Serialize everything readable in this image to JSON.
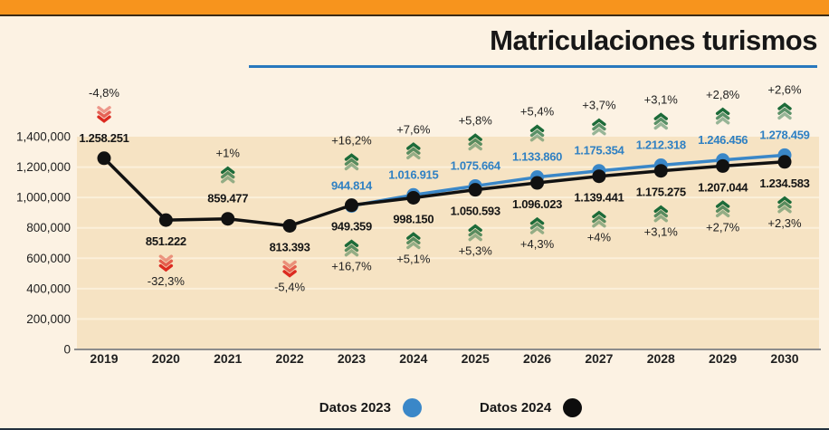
{
  "header": {
    "top_bar_color": "#F7941D",
    "title": "Matriculaciones turismos",
    "underline_color": "#2878BE"
  },
  "legend": {
    "items": [
      {
        "label": "Datos 2023",
        "color": "#3A87C8"
      },
      {
        "label": "Datos 2024",
        "color": "#0D0D0D"
      }
    ]
  },
  "chart_data": {
    "type": "line",
    "title": "Matriculaciones turismos",
    "x": [
      2019,
      2020,
      2021,
      2022,
      2023,
      2024,
      2025,
      2026,
      2027,
      2028,
      2029,
      2030
    ],
    "ylim": [
      0,
      1400000
    ],
    "ytick_step": 200000,
    "ytick_labels": [
      "0",
      "200,000",
      "400,000",
      "600,000",
      "800,000",
      "1,000,000",
      "1,200,000",
      "1,400,000"
    ],
    "grid": true,
    "legend_position": "bottom",
    "series": [
      {
        "name": "Datos 2023",
        "color": "#3A87C8",
        "start_year": 2023,
        "values": [
          944814,
          1016915,
          1075664,
          1133860,
          1175354,
          1212318,
          1246456,
          1278459
        ]
      },
      {
        "name": "Datos 2024",
        "color": "#111111",
        "start_year": 2019,
        "values": [
          1258251,
          851222,
          859477,
          813393,
          949359,
          998150,
          1050593,
          1096023,
          1139441,
          1175275,
          1207044,
          1234583
        ]
      }
    ],
    "annotations_above": [
      {
        "year": 2019,
        "series": "Datos 2024",
        "pct": "-4,8%",
        "trend": "down",
        "value": "1.258.251",
        "value_color": "black"
      },
      {
        "year": 2021,
        "series": "Datos 2024",
        "pct": "+1%",
        "trend": "up",
        "value": "859.477",
        "value_color": "black"
      },
      {
        "year": 2023,
        "series": "Datos 2023",
        "pct": "+16,2%",
        "trend": "up",
        "value": "944.814",
        "value_color": "blue"
      },
      {
        "year": 2024,
        "series": "Datos 2023",
        "pct": "+7,6%",
        "trend": "up",
        "value": "1.016.915",
        "value_color": "blue"
      },
      {
        "year": 2025,
        "series": "Datos 2023",
        "pct": "+5,8%",
        "trend": "up",
        "value": "1.075.664",
        "value_color": "blue"
      },
      {
        "year": 2026,
        "series": "Datos 2023",
        "pct": "+5,4%",
        "trend": "up",
        "value": "1.133.860",
        "value_color": "blue"
      },
      {
        "year": 2027,
        "series": "Datos 2023",
        "pct": "+3,7%",
        "trend": "up",
        "value": "1.175.354",
        "value_color": "blue"
      },
      {
        "year": 2028,
        "series": "Datos 2023",
        "pct": "+3,1%",
        "trend": "up",
        "value": "1.212.318",
        "value_color": "blue"
      },
      {
        "year": 2029,
        "series": "Datos 2023",
        "pct": "+2,8%",
        "trend": "up",
        "value": "1.246.456",
        "value_color": "blue"
      },
      {
        "year": 2030,
        "series": "Datos 2023",
        "pct": "+2,6%",
        "trend": "up",
        "value": "1.278.459",
        "value_color": "blue"
      }
    ],
    "annotations_below": [
      {
        "year": 2020,
        "series": "Datos 2024",
        "pct": "-32,3%",
        "trend": "down",
        "value": "851.222",
        "value_color": "black"
      },
      {
        "year": 2022,
        "series": "Datos 2024",
        "pct": "-5,4%",
        "trend": "down",
        "value": "813.393",
        "value_color": "black"
      },
      {
        "year": 2023,
        "series": "Datos 2024",
        "pct": "+16,7%",
        "trend": "up",
        "value": "949.359",
        "value_color": "black"
      },
      {
        "year": 2024,
        "series": "Datos 2024",
        "pct": "+5,1%",
        "trend": "up",
        "value": "998.150",
        "value_color": "black"
      },
      {
        "year": 2025,
        "series": "Datos 2024",
        "pct": "+5,3%",
        "trend": "up",
        "value": "1.050.593",
        "value_color": "black"
      },
      {
        "year": 2026,
        "series": "Datos 2024",
        "pct": "+4,3%",
        "trend": "up",
        "value": "1.096.023",
        "value_color": "black"
      },
      {
        "year": 2027,
        "series": "Datos 2024",
        "pct": "+4%",
        "trend": "up",
        "value": "1.139.441",
        "value_color": "black"
      },
      {
        "year": 2028,
        "series": "Datos 2024",
        "pct": "+3,1%",
        "trend": "up",
        "value": "1.175.275",
        "value_color": "black"
      },
      {
        "year": 2029,
        "series": "Datos 2024",
        "pct": "+2,7%",
        "trend": "up",
        "value": "1.207.044",
        "value_color": "black"
      },
      {
        "year": 2030,
        "series": "Datos 2024",
        "pct": "+2,3%",
        "trend": "up",
        "value": "1.234.583",
        "value_color": "black"
      }
    ],
    "colors": {
      "plot_bg": "#F6E3C3",
      "gridline": "#FBF0DA",
      "axis": "#8C8C8C",
      "trend_up": "#1C6B39",
      "trend_down": "#DC2A20",
      "value_blue": "#2F80C3",
      "value_black": "#151515",
      "text": "#1F1F1F"
    }
  }
}
